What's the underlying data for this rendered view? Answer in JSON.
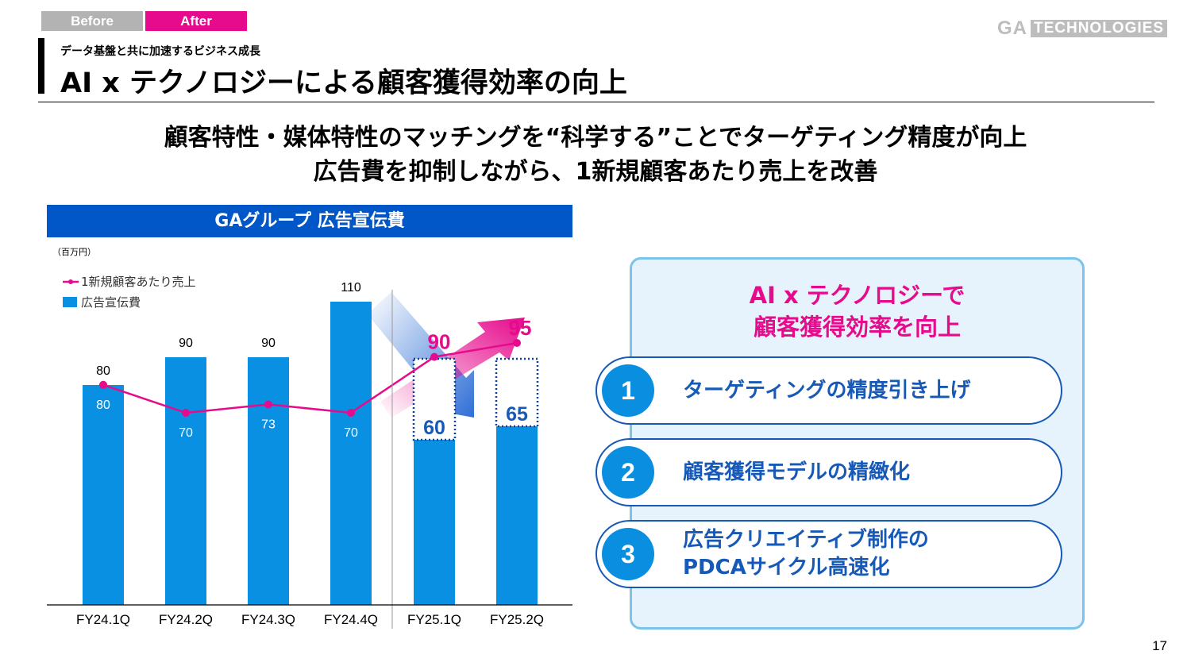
{
  "tabs": {
    "before": "Before",
    "after": "After"
  },
  "logo": {
    "ga": "GA",
    "tech": "TECHNOLOGIES"
  },
  "header": {
    "subtitle": "データ基盤と共に加速するビジネス成長",
    "title": "AI x テクノロジーによる顧客獲得効率の向上"
  },
  "lead": {
    "line1": "顧客特性・媒体特性のマッチングを“科学する”ことでターゲティング精度が向上",
    "line2": "広告費を抑制しながら、1新規顧客あたり売上を改善"
  },
  "chart_header": "GAグループ 広告宣伝費",
  "unit": "（百万円）",
  "chart_data": {
    "type": "bar",
    "categories": [
      "FY24.1Q",
      "FY24.2Q",
      "FY24.3Q",
      "FY24.4Q",
      "FY25.1Q",
      "FY25.2Q"
    ],
    "series": [
      {
        "name": "広告宣伝費",
        "type": "bar",
        "values": [
          80,
          90,
          90,
          110,
          60,
          65
        ],
        "color": "#0a90e2"
      },
      {
        "name": "1新規顧客あたり売上",
        "type": "line",
        "values": [
          80,
          70,
          73,
          70,
          90,
          95
        ],
        "color": "#e60a8c"
      }
    ],
    "ylim": [
      0,
      120
    ],
    "legend_position": "top-left",
    "grid": false
  },
  "panel": {
    "title_line1": "AI x テクノロジーで",
    "title_line2": "顧客獲得効率を向上",
    "items": [
      {
        "num": "1",
        "text": "ターゲティングの精度引き上げ"
      },
      {
        "num": "2",
        "text": "顧客獲得モデルの精緻化"
      },
      {
        "num": "3",
        "text": "広告クリエイティブ制作の\nPDCAサイクル高速化"
      }
    ]
  },
  "page_number": "17"
}
